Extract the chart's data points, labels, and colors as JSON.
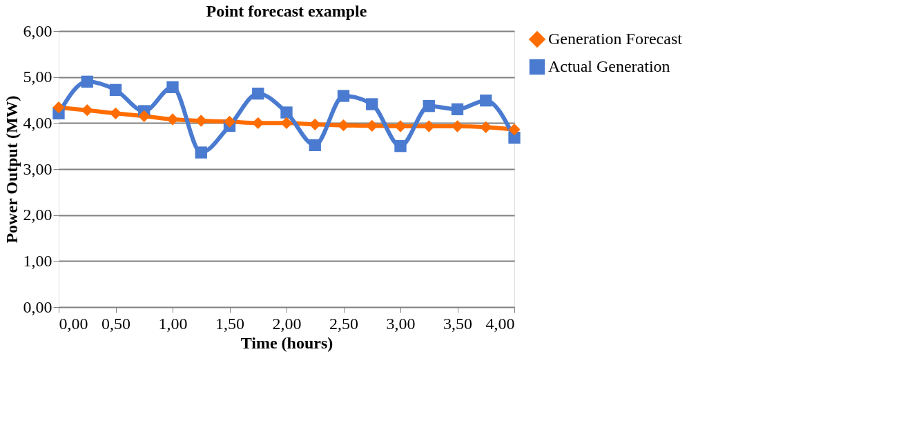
{
  "chart_data": {
    "type": "line",
    "title": "Point forecast example",
    "xlabel": "Time (hours)",
    "ylabel": "Power Output (MW)",
    "x": [
      0,
      0.25,
      0.5,
      0.75,
      1,
      1.25,
      1.5,
      1.75,
      2,
      2.25,
      2.5,
      2.75,
      3,
      3.25,
      3.5,
      3.75,
      4
    ],
    "series": [
      {
        "name": "Generation Forecast",
        "color": "#ff6d00",
        "marker": "diamond",
        "values": [
          4.34,
          4.28,
          4.21,
          4.15,
          4.08,
          4.05,
          4.03,
          4.0,
          4.0,
          3.97,
          3.95,
          3.94,
          3.93,
          3.93,
          3.93,
          3.91,
          3.86
        ]
      },
      {
        "name": "Actual Generation",
        "color": "#4a7bd0",
        "marker": "square",
        "values": [
          4.21,
          4.9,
          4.72,
          4.26,
          4.78,
          3.36,
          3.94,
          4.64,
          4.23,
          3.52,
          4.59,
          4.41,
          3.5,
          4.37,
          4.3,
          4.49,
          3.68
        ]
      }
    ],
    "xlim": [
      0,
      4
    ],
    "xticks": [
      {
        "value": 0,
        "label": "0,00"
      },
      {
        "value": 0.5,
        "label": "0,50"
      },
      {
        "value": 1,
        "label": "1,00"
      },
      {
        "value": 1.5,
        "label": "1,50"
      },
      {
        "value": 2,
        "label": "2,00"
      },
      {
        "value": 2.5,
        "label": "2,50"
      },
      {
        "value": 3,
        "label": "3,00"
      },
      {
        "value": 3.5,
        "label": "3,50"
      },
      {
        "value": 4,
        "label": "4,00"
      }
    ],
    "ylim": [
      0,
      6
    ],
    "yticks": [
      {
        "value": 0,
        "label": "0,00"
      },
      {
        "value": 1,
        "label": "1,00"
      },
      {
        "value": 2,
        "label": "2,00"
      },
      {
        "value": 3,
        "label": "3,00"
      },
      {
        "value": 4,
        "label": "4,00"
      },
      {
        "value": 5,
        "label": "5,00"
      },
      {
        "value": 6,
        "label": "6,00"
      }
    ],
    "grid": "y",
    "legend": "right",
    "line_style": "solid"
  }
}
